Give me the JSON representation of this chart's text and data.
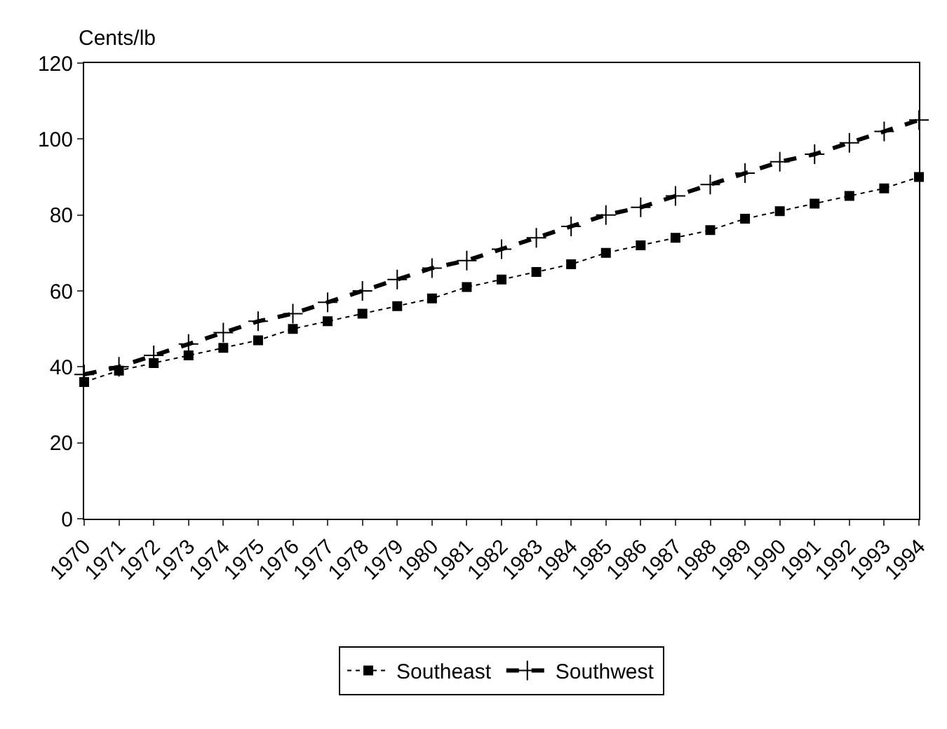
{
  "chart_data": {
    "type": "line",
    "ylabel": "Cents/lb",
    "categories": [
      "1970",
      "1971",
      "1972",
      "1973",
      "1974",
      "1975",
      "1976",
      "1977",
      "1978",
      "1979",
      "1980",
      "1981",
      "1982",
      "1983",
      "1984",
      "1985",
      "1986",
      "1987",
      "1988",
      "1989",
      "1990",
      "1991",
      "1992",
      "1993",
      "1994"
    ],
    "series": [
      {
        "name": "Southeast",
        "color": "#000000",
        "marker": "square",
        "line_style": "dotted",
        "values": [
          36,
          39,
          41,
          43,
          45,
          47,
          50,
          52,
          54,
          56,
          58,
          61,
          63,
          65,
          67,
          70,
          72,
          74,
          76,
          79,
          81,
          83,
          85,
          87,
          90
        ]
      },
      {
        "name": "Southwest",
        "color": "#000000",
        "marker": "cross",
        "line_style": "dashed",
        "values": [
          38,
          40,
          43,
          46,
          49,
          52,
          54,
          57,
          60,
          63,
          66,
          68,
          71,
          74,
          77,
          80,
          82,
          85,
          88,
          91,
          94,
          96,
          99,
          102,
          105
        ]
      }
    ],
    "ylim": [
      0,
      120
    ],
    "yticks": [
      0,
      20,
      40,
      60,
      80,
      100,
      120
    ],
    "grid": false,
    "legend": "bottom"
  }
}
